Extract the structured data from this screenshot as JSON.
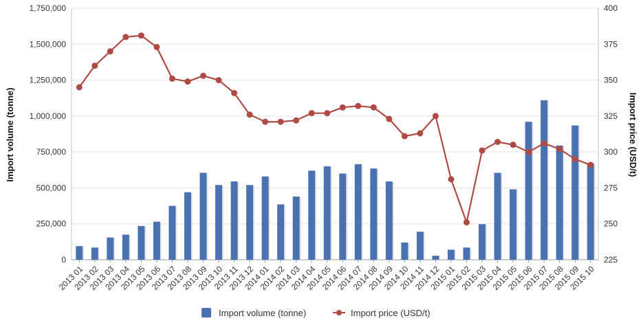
{
  "chart_data": {
    "type": "bar",
    "title": "",
    "categories": [
      "2013 01",
      "2013 02",
      "2013 03",
      "2013 04",
      "2013 05",
      "2013 06",
      "2013 07",
      "2013 08",
      "2013 09",
      "2013 10",
      "2013 11",
      "2013 12",
      "2014 01",
      "2014 02",
      "2014 03",
      "2014 04",
      "2014 05",
      "2014 06",
      "2014 07",
      "2014 08",
      "2014 09",
      "2014 10",
      "2014 11",
      "2014 12",
      "2015 01",
      "2015 02",
      "2015 03",
      "2015 04",
      "2015 05",
      "2015 06",
      "2015 07",
      "2015 08",
      "2015 09",
      "2015 10"
    ],
    "series": [
      {
        "name": "Import volume (tonne)",
        "type": "bar",
        "axis": "left",
        "color": "#4a72b0",
        "values": [
          95000,
          85000,
          155000,
          175000,
          235000,
          265000,
          375000,
          470000,
          605000,
          520000,
          545000,
          520000,
          580000,
          385000,
          440000,
          620000,
          650000,
          600000,
          665000,
          635000,
          545000,
          120000,
          195000,
          28000,
          70000,
          85000,
          248000,
          605000,
          490000,
          960000,
          1110000,
          795000,
          935000,
          670000
        ]
      },
      {
        "name": "Import price (USD/t)",
        "type": "line",
        "axis": "right",
        "color": "#b04a45",
        "values": [
          345,
          360,
          370,
          380,
          381,
          373,
          351,
          349,
          353,
          350,
          341,
          326,
          321,
          321,
          322,
          327,
          327,
          331,
          332,
          331,
          323,
          311,
          313,
          325,
          281,
          251,
          301,
          307,
          305,
          300,
          306,
          302,
          295,
          291
        ]
      }
    ],
    "ylabel": "Import volume (tonne)",
    "y2label": "Import price (USD/t)",
    "ylim": [
      0,
      1750000
    ],
    "y2lim": [
      225,
      400
    ],
    "yticks": [
      "0",
      "250,000",
      "500,000",
      "750,000",
      "1,000,000",
      "1,250,000",
      "1,500,000",
      "1,750,000"
    ],
    "y2ticks": [
      "225",
      "250",
      "275",
      "300",
      "325",
      "350",
      "375",
      "400"
    ],
    "grid": true,
    "legend_position": "bottom-center"
  }
}
